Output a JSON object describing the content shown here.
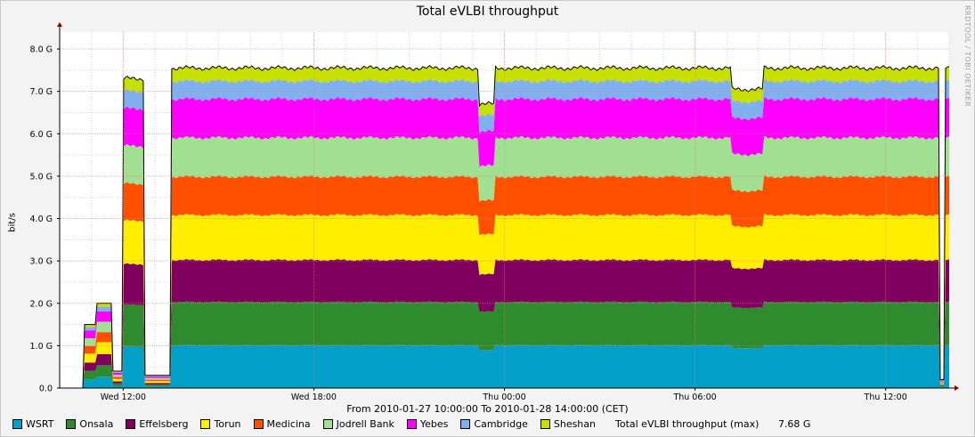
{
  "chart_data": {
    "type": "area",
    "stacked": true,
    "title": "Total eVLBI throughput",
    "subtitle": "From 2010-01-27 10:00:00 To 2010-01-28 14:00:00 (CET)",
    "ylabel": "bit/s",
    "watermark": "RRDTOOL / TOBI OETIKER",
    "yticks": [
      {
        "value": 0,
        "label": "0.0"
      },
      {
        "value": 1,
        "label": "1.0 G"
      },
      {
        "value": 2,
        "label": "2.0 G"
      },
      {
        "value": 3,
        "label": "3.0 G"
      },
      {
        "value": 4,
        "label": "4.0 G"
      },
      {
        "value": 5,
        "label": "5.0 G"
      },
      {
        "value": 6,
        "label": "6.0 G"
      },
      {
        "value": 7,
        "label": "7.0 G"
      },
      {
        "value": 8,
        "label": "8.0 G"
      }
    ],
    "ylim": [
      0,
      8.4
    ],
    "xlim": [
      "2010-01-27 10:00",
      "2010-01-28 14:00"
    ],
    "xticks": [
      {
        "value": "2010-01-27 12:00",
        "label": "Wed 12:00"
      },
      {
        "value": "2010-01-27 18:00",
        "label": "Wed 18:00"
      },
      {
        "value": "2010-01-28 00:00",
        "label": "Thu 00:00"
      },
      {
        "value": "2010-01-28 06:00",
        "label": "Thu 06:00"
      },
      {
        "value": "2010-01-28 12:00",
        "label": "Thu 12:00"
      }
    ],
    "grid": true,
    "legend_position": "bottom",
    "series": [
      {
        "name": "WSRT",
        "color": "#00a0c8",
        "typical": 1.02
      },
      {
        "name": "Onsala",
        "color": "#2e8b2e",
        "typical": 1.03
      },
      {
        "name": "Effelsberg",
        "color": "#800060",
        "typical": 1.0
      },
      {
        "name": "Torun",
        "color": "#ffee00",
        "typical": 1.07
      },
      {
        "name": "Medicina",
        "color": "#ff5000",
        "typical": 0.91
      },
      {
        "name": "Jodrell Bank",
        "color": "#a0e090",
        "typical": 0.93
      },
      {
        "name": "Yebes",
        "color": "#ff00ff",
        "typical": 0.92
      },
      {
        "name": "Cambridge",
        "color": "#80b0f0",
        "typical": 0.43
      },
      {
        "name": "Sheshan",
        "color": "#c8e000",
        "typical": 0.31
      }
    ],
    "total_legend": {
      "label": "Total eVLBI throughput (max)",
      "value": "7.68 G"
    },
    "events": [
      {
        "start": "2010-01-27 10:00",
        "end": "2010-01-27 10:45",
        "level": 0
      },
      {
        "start": "2010-01-27 10:45",
        "end": "2010-01-27 11:10",
        "level": 1.5
      },
      {
        "start": "2010-01-27 11:10",
        "end": "2010-01-27 11:40",
        "level": 2.0
      },
      {
        "start": "2010-01-27 11:40",
        "end": "2010-01-27 12:00",
        "level": 0.4
      },
      {
        "start": "2010-01-27 12:00",
        "end": "2010-01-27 12:40",
        "level": 7.3
      },
      {
        "start": "2010-01-27 12:40",
        "end": "2010-01-27 13:30",
        "level": 0.3
      },
      {
        "start": "2010-01-27 13:30",
        "end": "2010-01-28 14:00",
        "level": 7.55
      },
      {
        "start": "2010-01-27 23:10",
        "end": "2010-01-27 23:40",
        "level": 6.7
      },
      {
        "start": "2010-01-28 07:10",
        "end": "2010-01-28 08:10",
        "level": 7.05
      },
      {
        "start": "2010-01-28 13:40",
        "end": "2010-01-28 13:50",
        "level": 0.2
      }
    ]
  }
}
